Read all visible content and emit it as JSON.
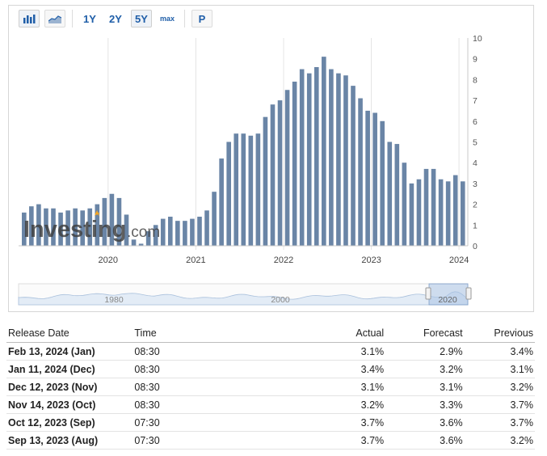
{
  "toolbar": {
    "range_buttons": [
      "1Y",
      "2Y",
      "5Y",
      "max"
    ],
    "p_button": "P",
    "icons": [
      "bar-chart-icon",
      "area-chart-icon"
    ]
  },
  "chart_data": {
    "type": "bar",
    "x_tick_labels": [
      "2020",
      "2021",
      "2022",
      "2023",
      "2024"
    ],
    "y_tick_labels": [
      "0",
      "1",
      "2",
      "3",
      "4",
      "5",
      "6",
      "7",
      "8",
      "9",
      "10"
    ],
    "ylim": [
      0,
      10
    ],
    "axis_side": "right",
    "grid": false,
    "start_month": "2019-01",
    "values": [
      1.6,
      1.9,
      2.0,
      1.8,
      1.8,
      1.6,
      1.7,
      1.8,
      1.7,
      1.8,
      2.0,
      2.3,
      2.5,
      2.3,
      1.5,
      0.3,
      0.1,
      0.7,
      1.0,
      1.3,
      1.4,
      1.2,
      1.2,
      1.3,
      1.4,
      1.7,
      2.6,
      4.2,
      5.0,
      5.4,
      5.4,
      5.3,
      5.4,
      6.2,
      6.8,
      7.0,
      7.5,
      7.9,
      8.5,
      8.3,
      8.6,
      9.1,
      8.5,
      8.3,
      8.2,
      7.7,
      7.1,
      6.5,
      6.4,
      6.0,
      5.0,
      4.9,
      4.0,
      3.0,
      3.2,
      3.7,
      3.7,
      3.2,
      3.1,
      3.4,
      3.1
    ],
    "bar_color": "#6a85a6",
    "navigator_labels": [
      "1980",
      "2000",
      "2020"
    ],
    "watermark": "Investing.com"
  },
  "table": {
    "headers": [
      "Release Date",
      "Time",
      "Actual",
      "Forecast",
      "Previous"
    ],
    "rows": [
      {
        "date": "Feb 13, 2024 (Jan)",
        "time": "08:30",
        "actual": "3.1%",
        "actual_color": "green",
        "forecast": "2.9%",
        "previous": "3.4%"
      },
      {
        "date": "Jan 11, 2024 (Dec)",
        "time": "08:30",
        "actual": "3.4%",
        "actual_color": "green",
        "forecast": "3.2%",
        "previous": "3.1%"
      },
      {
        "date": "Dec 12, 2023 (Nov)",
        "time": "08:30",
        "actual": "3.1%",
        "actual_color": "green",
        "forecast": "3.1%",
        "previous": "3.2%"
      },
      {
        "date": "Nov 14, 2023 (Oct)",
        "time": "08:30",
        "actual": "3.2%",
        "actual_color": "red",
        "forecast": "3.3%",
        "previous": "3.7%"
      },
      {
        "date": "Oct 12, 2023 (Sep)",
        "time": "07:30",
        "actual": "3.7%",
        "actual_color": "green",
        "forecast": "3.6%",
        "previous": "3.7%"
      },
      {
        "date": "Sep 13, 2023 (Aug)",
        "time": "07:30",
        "actual": "3.7%",
        "actual_color": "green",
        "forecast": "3.6%",
        "previous": "3.2%"
      }
    ]
  }
}
